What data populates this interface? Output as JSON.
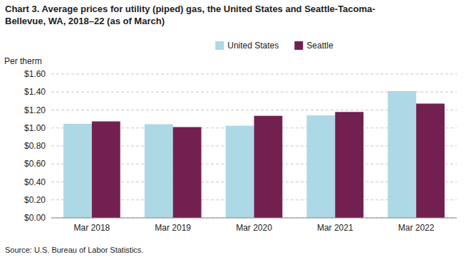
{
  "chart_data": {
    "type": "bar",
    "title": "Chart 3. Average prices for utility (piped) gas, the United States and Seattle-Tacoma-",
    "subtitle": "Bellevue, WA, 2018–22 (as of March)",
    "y_label": "Per therm",
    "source": "Source: U.S. Bureau of Labor Statistics.",
    "categories": [
      "Mar 2018",
      "Mar 2019",
      "Mar 2020",
      "Mar 2021",
      "Mar 2022"
    ],
    "series": [
      {
        "name": "United States",
        "color": "#add8e6",
        "values": [
          1.046,
          1.042,
          1.025,
          1.14,
          1.41
        ]
      },
      {
        "name": "Seattle",
        "color": "#722050",
        "values": [
          1.073,
          1.01,
          1.135,
          1.178,
          1.271
        ]
      }
    ],
    "ylim": [
      0.0,
      1.6
    ],
    "yticks": [
      {
        "value": 0.0,
        "label": "$0.00"
      },
      {
        "value": 0.2,
        "label": "$0.20"
      },
      {
        "value": 0.4,
        "label": "$0.40"
      },
      {
        "value": 0.6,
        "label": "$0.60"
      },
      {
        "value": 0.8,
        "label": "$0.80"
      },
      {
        "value": 1.0,
        "label": "$1.00"
      },
      {
        "value": 1.2,
        "label": "$1.20"
      },
      {
        "value": 1.4,
        "label": "$1.40"
      },
      {
        "value": 1.6,
        "label": "$1.60"
      }
    ],
    "grid": true,
    "legend": "top"
  }
}
